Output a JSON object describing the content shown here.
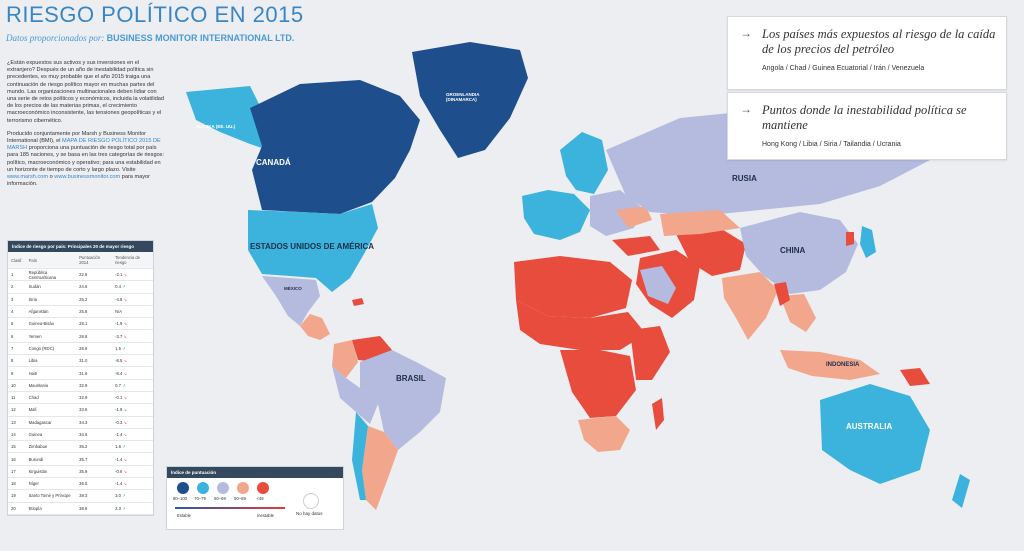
{
  "header": {
    "title": "RIESGO POLÍTICO EN 2015",
    "subtitle_prefix": "Datos proporcionados por:",
    "subtitle_source": "BUSINESS MONITOR INTERNATIONAL LTD."
  },
  "intro": {
    "p1": "¿Están expuestos sus activos y sus inversiones en el extranjero? Después de un año de inestabilidad política sin precedentes, es muy probable que el año 2015 traiga una continuación de riesgo político mayor en muchas partes del mundo. Las organizaciones multinacionales deben lidiar con una serie de retos políticos y económicos, incluida la volatilidad de los precios de las materias primas, el crecimiento macroeconómico inconsistente, las tensiones geopolíticas y el terrorismo cibernético.",
    "p2_a": "Producido conjuntamente por Marsh y Business Monitor International (BMI), el ",
    "p2_link": "MAPA DE RIESGO POLÍTICO 2015 DE MARSH",
    "p2_b": " proporciona una puntuación de riesgo total por país para 185 naciones, y se basa en las tres categorías de riesgos: político, macroeconómico y operativo; para una estabilidad en un horizonte de tiempo de corto y largo plazo. Visite ",
    "link1": "www.marsh.com",
    "p2_c": " o ",
    "link2": "www.businessmonitor.com",
    "p2_d": " para mayor información."
  },
  "table": {
    "title": "Índice de riesgo por país: Principales 20 de mayor riesgo",
    "headers": [
      "Clasif.",
      "País",
      "Puntuación 2014",
      "Tendencia de riesgo"
    ],
    "rows": [
      {
        "rank": "1",
        "country": "República Centroafricana",
        "score": "22.6",
        "trend": "-2.1",
        "dir": "down"
      },
      {
        "rank": "2",
        "country": "Sudán",
        "score": "24.6",
        "trend": "0.4",
        "dir": "up"
      },
      {
        "rank": "3",
        "country": "Siria",
        "score": "25.2",
        "trend": "-4.8",
        "dir": "down"
      },
      {
        "rank": "4",
        "country": "Afganistán",
        "score": "25.8",
        "trend": "N/A",
        "dir": "none"
      },
      {
        "rank": "5",
        "country": "Guinea-Bisáu",
        "score": "28.1",
        "trend": "-1.9",
        "dir": "down"
      },
      {
        "rank": "6",
        "country": "Yemen",
        "score": "28.8",
        "trend": "-3.7",
        "dir": "down"
      },
      {
        "rank": "7",
        "country": "Congo (RDC)",
        "score": "28.9",
        "trend": "1.5",
        "dir": "up"
      },
      {
        "rank": "8",
        "country": "Libia",
        "score": "31.0",
        "trend": "-8.5",
        "dir": "down"
      },
      {
        "rank": "9",
        "country": "Haití",
        "score": "31.6",
        "trend": "-8.4",
        "dir": "down"
      },
      {
        "rank": "10",
        "country": "Mauritania",
        "score": "32.9",
        "trend": "0.7",
        "dir": "up"
      },
      {
        "rank": "11",
        "country": "Chad",
        "score": "32.9",
        "trend": "-0.1",
        "dir": "down"
      },
      {
        "rank": "12",
        "country": "Malí",
        "score": "33.6",
        "trient": "",
        "trend": "-1.9",
        "dir": "down"
      },
      {
        "rank": "13",
        "country": "Madagascar",
        "score": "34.3",
        "trend": "-0.3",
        "dir": "down"
      },
      {
        "rank": "14",
        "country": "Guinea",
        "score": "34.6",
        "trend": "-1.4",
        "dir": "down"
      },
      {
        "rank": "15",
        "country": "Zimbabue",
        "score": "35.2",
        "trend": "1.6",
        "dir": "up"
      },
      {
        "rank": "16",
        "country": "Burundi",
        "score": "35.7",
        "trend": "-1.4",
        "dir": "down"
      },
      {
        "rank": "17",
        "country": "Kirguistán",
        "score": "35.9",
        "trend": "-0.6",
        "dir": "down"
      },
      {
        "rank": "18",
        "country": "Níger",
        "score": "36.5",
        "trend": "-1.4",
        "dir": "down"
      },
      {
        "rank": "19",
        "country": "Santo Tomé y Príncipe",
        "score": "38.3",
        "trend": "3.0",
        "dir": "up"
      },
      {
        "rank": "20",
        "country": "Etiopía",
        "score": "38.6",
        "trend": "2.3",
        "dir": "up"
      }
    ]
  },
  "callouts": {
    "first_title": "Los países más expuestos al riesgo de la caída de los precios del petróleo",
    "first_list": "Angola / Chad / Guinea Ecuatorial / Irán / Venezuela",
    "second_title": "Puntos donde la inestabilidad política se mantiene",
    "second_list": "Hong Kong / Libia / Siria / Tailandia / Ucrania",
    "arrow": "→"
  },
  "legend": {
    "title": "Índice de puntuación",
    "ranges": [
      "80–100",
      "70–79",
      "60–69",
      "50–59",
      "<49"
    ],
    "colors": [
      "#1f4e8c",
      "#3cb3dd",
      "#b5bbdf",
      "#f2a68c",
      "#e84c3d"
    ],
    "stable": "Estable",
    "unstable": "Inestable",
    "no_data": "No hay datos"
  },
  "labels": {
    "canada": "CANADÁ",
    "usa": "ESTADOS UNIDOS DE AMÉRICA",
    "alaska": "ALASKA (EE. UU.)",
    "greenland": "GROENLANDIA (DINAMARCA)",
    "russia": "RUSIA",
    "china": "CHINA",
    "brasil": "BRASIL",
    "australia": "AUSTRALIA",
    "indonesia": "INDONESIA",
    "mexico": "MÉXICO"
  }
}
